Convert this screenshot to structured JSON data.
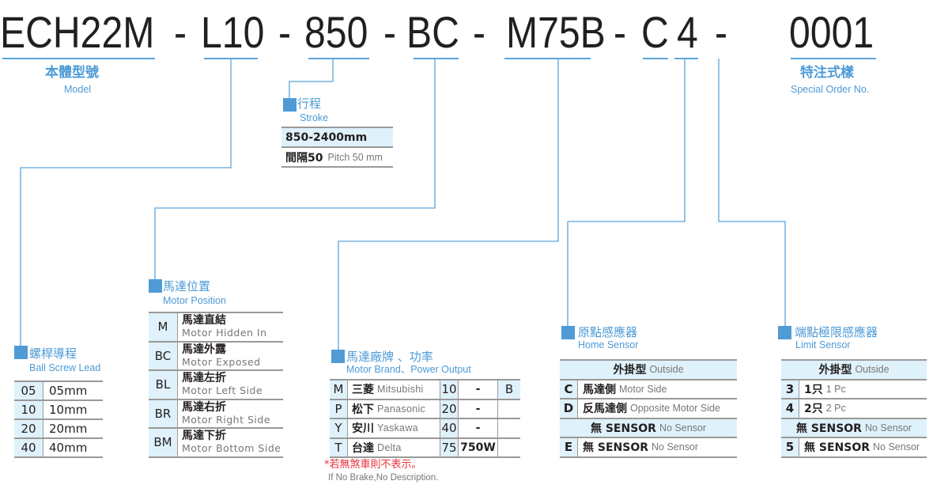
{
  "model_code": {
    "segments": [
      "ECH22M",
      "L10",
      "850",
      "BC",
      "M75B",
      "C",
      "4",
      "0001"
    ],
    "separator": "-"
  },
  "colors": {
    "accent": "#4f9bd6",
    "cell_highlight": "#dff1fb",
    "note_red": "#e8323c",
    "text": "#231f20"
  },
  "model": {
    "title_zh": "本體型號",
    "title_en": "Model"
  },
  "special_order": {
    "title_zh": "特注式樣",
    "title_en": "Special Order No."
  },
  "stroke": {
    "title_zh": "行程",
    "title_en": "Stroke",
    "range": "850-2400mm",
    "pitch_zh": "間隔50",
    "pitch_en": "Pitch 50 mm"
  },
  "ball_screw_lead": {
    "title_zh": "螺桿導程",
    "title_en": "Ball Screw Lead",
    "rows": [
      {
        "code": "05",
        "value": "05mm"
      },
      {
        "code": "10",
        "value": "10mm"
      },
      {
        "code": "20",
        "value": "20mm"
      },
      {
        "code": "40",
        "value": "40mm"
      }
    ]
  },
  "motor_position": {
    "title_zh": "馬達位置",
    "title_en": "Motor Position",
    "rows": [
      {
        "code": "M",
        "zh": "馬達直結",
        "en": "Motor Hidden In"
      },
      {
        "code": "BC",
        "zh": "馬達外露",
        "en": "Motor Exposed"
      },
      {
        "code": "BL",
        "zh": "馬達左折",
        "en": "Motor Left Side"
      },
      {
        "code": "BR",
        "zh": "馬達右折",
        "en": "Motor Right Side"
      },
      {
        "code": "BM",
        "zh": "馬達下折",
        "en": "Motor Bottom Side"
      }
    ]
  },
  "motor_brand": {
    "title_zh": "馬達廠牌 、功率",
    "title_en": "Motor Brand、Power Output",
    "rows": [
      {
        "code": "M",
        "zh": "三菱",
        "en": "Mitsubishi",
        "power_code": "10",
        "power": "-",
        "brake": "B"
      },
      {
        "code": "P",
        "zh": "松下",
        "en": "Panasonic",
        "power_code": "20",
        "power": "-",
        "brake": ""
      },
      {
        "code": "Y",
        "zh": "安川",
        "en": "Yaskawa",
        "power_code": "40",
        "power": "-",
        "brake": ""
      },
      {
        "code": "T",
        "zh": "台達",
        "en": "Delta",
        "power_code": "75",
        "power": "750W",
        "brake": ""
      }
    ],
    "note_zh": "*若無煞車則不表示。",
    "note_en": "If No Brake,No Description."
  },
  "home_sensor": {
    "title_zh": "原點感應器",
    "title_en": "Home Sensor",
    "rows": [
      {
        "header": true,
        "zh": "外掛型",
        "en": "Outside"
      },
      {
        "code": "C",
        "zh": "馬達側",
        "en": "Motor Side"
      },
      {
        "code": "D",
        "zh": "反馬達側",
        "en": "Opposite Motor Side"
      },
      {
        "header": true,
        "zh": "無 SENSOR",
        "en": "No Sensor"
      },
      {
        "code": "E",
        "zh": "無 SENSOR",
        "en": "No Sensor"
      }
    ]
  },
  "limit_sensor": {
    "title_zh": "端點極限感應器",
    "title_en": "Limit Sensor",
    "rows": [
      {
        "header": true,
        "zh": "外掛型",
        "en": "Outside"
      },
      {
        "code": "3",
        "zh": "1只",
        "en": "1 Pc"
      },
      {
        "code": "4",
        "zh": "2只",
        "en": "2 Pc"
      },
      {
        "header": true,
        "zh": "無 SENSOR",
        "en": "No Sensor"
      },
      {
        "code": "5",
        "zh": "無 SENSOR",
        "en": "No Sensor"
      }
    ]
  }
}
